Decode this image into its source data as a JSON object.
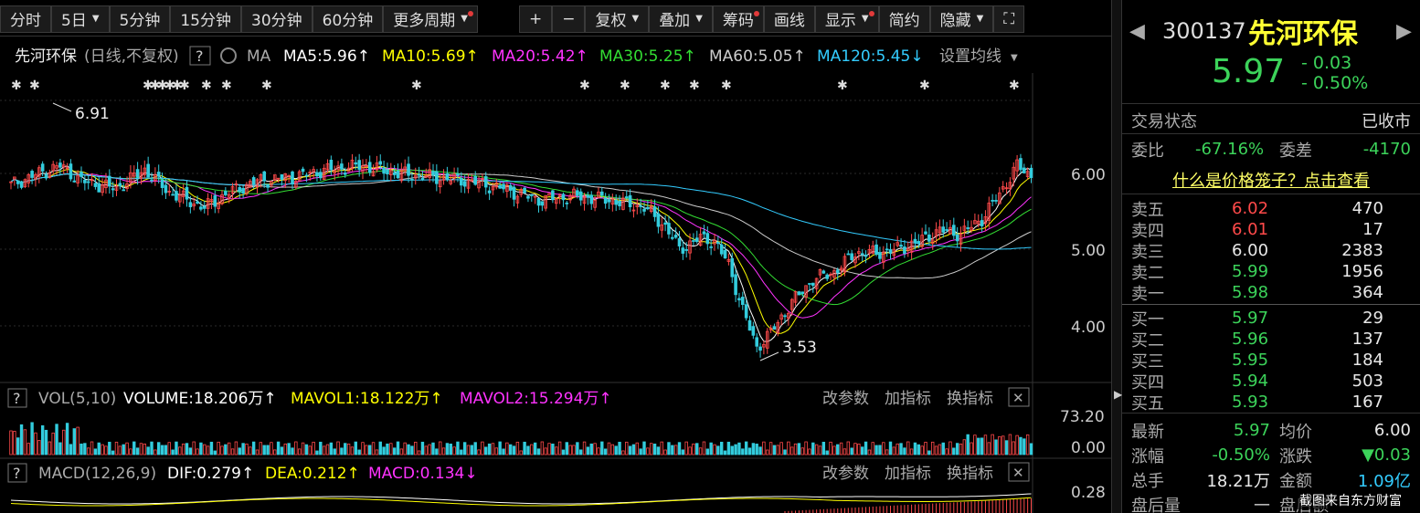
{
  "toolbar": {
    "items": [
      {
        "label": "分时",
        "caret": false,
        "dot": false
      },
      {
        "label": "5日",
        "caret": true,
        "dot": false
      },
      {
        "label": "5分钟",
        "caret": false,
        "dot": false
      },
      {
        "label": "15分钟",
        "caret": false,
        "dot": false
      },
      {
        "label": "30分钟",
        "caret": false,
        "dot": false
      },
      {
        "label": "60分钟",
        "caret": false,
        "dot": false
      },
      {
        "label": "更多周期",
        "caret": true,
        "dot": true
      }
    ],
    "right_items": [
      {
        "label": "+",
        "caret": false,
        "dot": false
      },
      {
        "label": "−",
        "caret": false,
        "dot": false
      },
      {
        "label": "复权",
        "caret": true,
        "dot": false
      },
      {
        "label": "叠加",
        "caret": true,
        "dot": false
      },
      {
        "label": "筹码",
        "caret": false,
        "dot": true
      },
      {
        "label": "画线",
        "caret": false,
        "dot": false
      },
      {
        "label": "显示",
        "caret": true,
        "dot": true
      },
      {
        "label": "简约",
        "caret": false,
        "dot": false
      },
      {
        "label": "隐藏",
        "caret": true,
        "dot": false
      },
      {
        "label": "⛶",
        "caret": false,
        "dot": false
      }
    ]
  },
  "legend": {
    "stock": "先河环保",
    "mode": "(日线,不复权)",
    "help": "?",
    "ma_label": "MA",
    "ma5": "MA5:5.96↑",
    "ma10": "MA10:5.69↑",
    "ma20": "MA20:5.42↑",
    "ma30": "MA30:5.25↑",
    "ma60": "MA60:5.05↑",
    "ma120": "MA120:5.45↓",
    "settings": "设置均线"
  },
  "colors": {
    "ma5": "#ffffff",
    "ma10": "#ffff00",
    "ma20": "#ff33ff",
    "ma30": "#33dd33",
    "ma60": "#cccccc",
    "ma120": "#33ccff",
    "up": "#ff4a4a",
    "down": "#33ccdd"
  },
  "price_axis": {
    "labels": [
      "6.00",
      "5.00",
      "4.00"
    ]
  },
  "annotations": {
    "high": "6.91",
    "low": "3.53"
  },
  "vol_panel": {
    "help": "?",
    "name": "VOL(5,10)",
    "volume": "VOLUME:18.206万↑",
    "mavol1": "MAVOL1:18.122万↑",
    "mavol2": "MAVOL2:15.294万↑",
    "btn1": "改参数",
    "btn2": "加指标",
    "btn3": "换指标",
    "axis_top": "73.20",
    "axis_bottom": "0.00"
  },
  "macd_panel": {
    "help": "?",
    "name": "MACD(12,26,9)",
    "dif": "DIF:0.279↑",
    "dea": "DEA:0.212↑",
    "macd": "MACD:0.134↓",
    "btn1": "改参数",
    "btn2": "加指标",
    "btn3": "换指标",
    "axis_top": "0.28"
  },
  "side": {
    "code": "300137",
    "name": "先河环保",
    "price": "5.97",
    "change": "- 0.03",
    "change_pct": "- 0.50%",
    "status_label": "交易状态",
    "status_value": "已收市",
    "weibi_label": "委比",
    "weibi_value": "-67.16%",
    "weicha_label": "委差",
    "weicha_value": "-4170",
    "cage_link": "什么是价格笼子？点击查看",
    "asks": [
      {
        "label": "卖五",
        "price": "6.02",
        "vol": "470",
        "color": "red"
      },
      {
        "label": "卖四",
        "price": "6.01",
        "vol": "17",
        "color": "red"
      },
      {
        "label": "卖三",
        "price": "6.00",
        "vol": "2383",
        "color": "white"
      },
      {
        "label": "卖二",
        "price": "5.99",
        "vol": "1956",
        "color": "green"
      },
      {
        "label": "卖一",
        "price": "5.98",
        "vol": "364",
        "color": "green"
      }
    ],
    "bids": [
      {
        "label": "买一",
        "price": "5.97",
        "vol": "29",
        "color": "green"
      },
      {
        "label": "买二",
        "price": "5.96",
        "vol": "137",
        "color": "green"
      },
      {
        "label": "买三",
        "price": "5.95",
        "vol": "184",
        "color": "green"
      },
      {
        "label": "买四",
        "price": "5.94",
        "vol": "503",
        "color": "green"
      },
      {
        "label": "买五",
        "price": "5.93",
        "vol": "167",
        "color": "green"
      }
    ],
    "stats": [
      {
        "l1": "最新",
        "v1": "5.97",
        "c1": "green",
        "l2": "均价",
        "v2": "6.00",
        "c2": "white"
      },
      {
        "l1": "涨幅",
        "v1": "-0.50%",
        "c1": "green",
        "l2": "涨跌",
        "v2": "▼0.03",
        "c2": "green"
      },
      {
        "l1": "总手",
        "v1": "18.21万",
        "c1": "white",
        "l2": "金额",
        "v2": "1.09亿",
        "c2": "cyan"
      },
      {
        "l1": "盘后量",
        "v1": "—",
        "c1": "white",
        "l2": "盘后额",
        "v2": "",
        "c2": "white"
      }
    ],
    "watermark": "截图来自东方财富"
  }
}
